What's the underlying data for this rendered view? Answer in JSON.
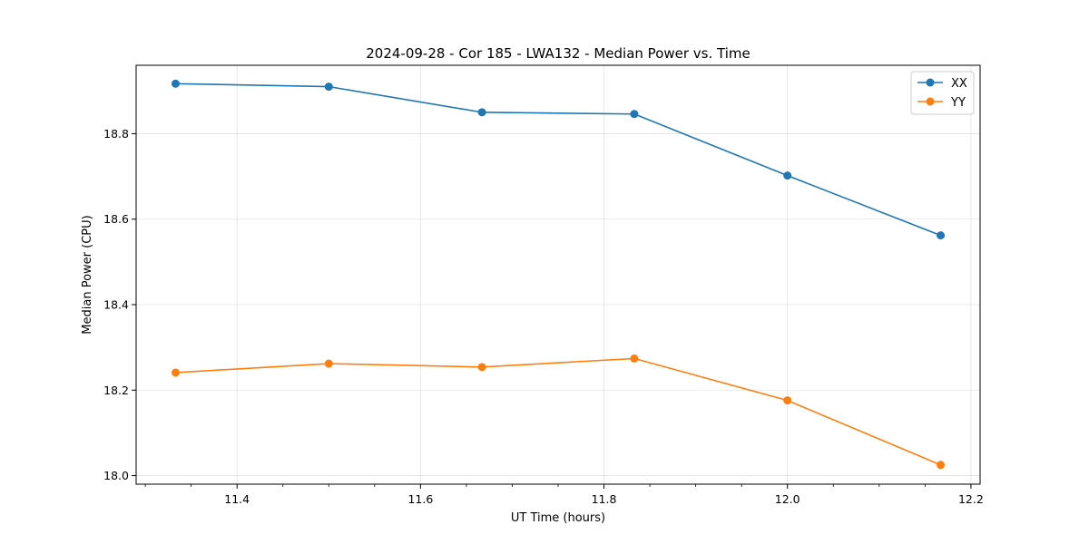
{
  "chart_data": {
    "type": "line",
    "title": "2024-09-28 - Cor 185 - LWA132 - Median Power vs. Time",
    "xlabel": "UT Time (hours)",
    "ylabel": "Median Power (CPU)",
    "xlim": [
      11.29,
      12.21
    ],
    "ylim": [
      17.98,
      18.96
    ],
    "xticks": [
      11.4,
      11.6,
      11.8,
      12.0,
      12.2
    ],
    "xtick_labels": [
      "11.4",
      "11.6",
      "11.8",
      "12.0",
      "12.2"
    ],
    "yticks": [
      18.0,
      18.2,
      18.4,
      18.6,
      18.8
    ],
    "ytick_labels": [
      "18.0",
      "18.2",
      "18.4",
      "18.6",
      "18.8"
    ],
    "x": [
      11.333,
      11.5,
      11.667,
      11.833,
      12.0,
      12.167
    ],
    "series": [
      {
        "name": "XX",
        "color": "#1f77b4",
        "values": [
          18.917,
          18.91,
          18.85,
          18.846,
          18.702,
          18.562
        ]
      },
      {
        "name": "YY",
        "color": "#ff7f0e",
        "values": [
          18.241,
          18.262,
          18.254,
          18.274,
          18.176,
          18.025
        ]
      }
    ],
    "grid": true,
    "legend_position": "top-right"
  }
}
